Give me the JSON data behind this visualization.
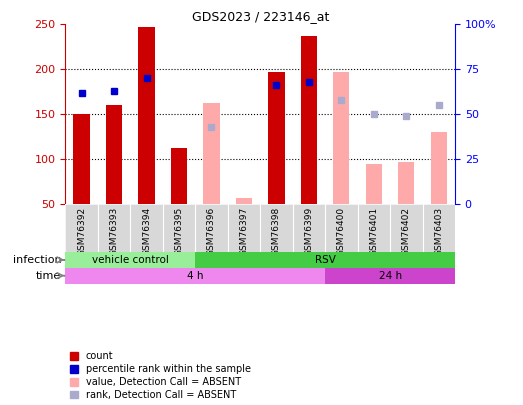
{
  "title": "GDS2023 / 223146_at",
  "samples": [
    "GSM76392",
    "GSM76393",
    "GSM76394",
    "GSM76395",
    "GSM76396",
    "GSM76397",
    "GSM76398",
    "GSM76399",
    "GSM76400",
    "GSM76401",
    "GSM76402",
    "GSM76403"
  ],
  "count_values": [
    150,
    160,
    247,
    113,
    null,
    null,
    197,
    237,
    null,
    null,
    null,
    null
  ],
  "count_rank_pct": [
    62,
    63,
    70,
    null,
    null,
    null,
    66,
    68,
    null,
    null,
    null,
    null
  ],
  "absent_value": [
    null,
    null,
    null,
    null,
    163,
    57,
    null,
    null,
    197,
    95,
    97,
    130
  ],
  "absent_rank_pct": [
    null,
    null,
    null,
    null,
    43,
    null,
    null,
    null,
    58,
    50,
    49,
    55
  ],
  "ylim_left": [
    50,
    250
  ],
  "ylim_right": [
    0,
    100
  ],
  "yticks_left": [
    50,
    100,
    150,
    200,
    250
  ],
  "yticks_right": [
    0,
    25,
    50,
    75,
    100
  ],
  "ytick_labels_right": [
    "0",
    "25",
    "50",
    "75",
    "100%"
  ],
  "left_color": "#cc0000",
  "absent_bar_color": "#ffaaaa",
  "rank_present_color": "#0000cc",
  "rank_absent_color": "#aaaacc",
  "infection_groups": [
    {
      "label": "vehicle control",
      "start": 0,
      "end": 4,
      "color": "#99ee99"
    },
    {
      "label": "RSV",
      "start": 4,
      "end": 12,
      "color": "#44cc44"
    }
  ],
  "time_groups": [
    {
      "label": "4 h",
      "start": 0,
      "end": 8,
      "color": "#ee88ee"
    },
    {
      "label": "24 h",
      "start": 8,
      "end": 12,
      "color": "#cc44cc"
    }
  ],
  "legend_items": [
    {
      "label": "count",
      "color": "#cc0000"
    },
    {
      "label": "percentile rank within the sample",
      "color": "#0000cc"
    },
    {
      "label": "value, Detection Call = ABSENT",
      "color": "#ffaaaa"
    },
    {
      "label": "rank, Detection Call = ABSENT",
      "color": "#aaaacc"
    }
  ],
  "background_color": "#d8d8d8",
  "plot_bg": "#ffffff"
}
